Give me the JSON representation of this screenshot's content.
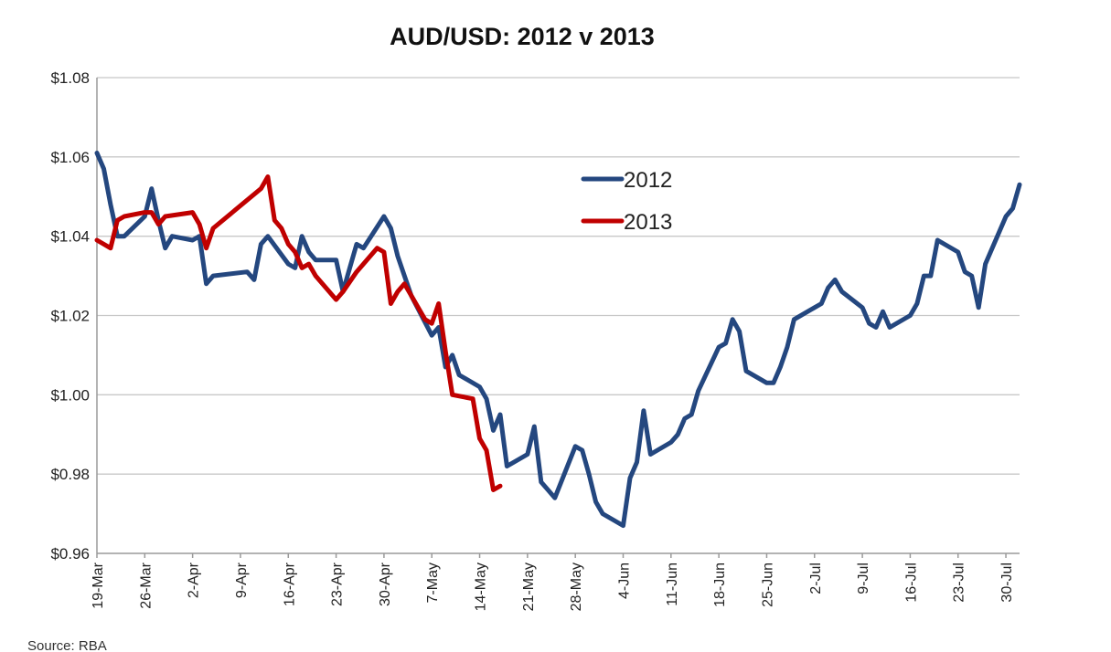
{
  "chart_data": {
    "type": "line",
    "title": "AUD/USD: 2012 v 2013",
    "xlabel": "",
    "ylabel": "",
    "ylim": [
      0.96,
      1.08
    ],
    "y_ticks": [
      {
        "value": 0.96,
        "label": "$0.96"
      },
      {
        "value": 0.98,
        "label": "$0.98"
      },
      {
        "value": 1.0,
        "label": "$1.00"
      },
      {
        "value": 1.02,
        "label": "$1.02"
      },
      {
        "value": 1.04,
        "label": "$1.04"
      },
      {
        "value": 1.06,
        "label": "$1.06"
      },
      {
        "value": 1.08,
        "label": "$1.08"
      }
    ],
    "x_start": "2012-03-19",
    "x_end": "2012-08-01",
    "x_ticks": [
      {
        "date": "2012-03-19",
        "label": "19-Mar"
      },
      {
        "date": "2012-03-26",
        "label": "26-Mar"
      },
      {
        "date": "2012-04-02",
        "label": "2-Apr"
      },
      {
        "date": "2012-04-09",
        "label": "9-Apr"
      },
      {
        "date": "2012-04-16",
        "label": "16-Apr"
      },
      {
        "date": "2012-04-23",
        "label": "23-Apr"
      },
      {
        "date": "2012-04-30",
        "label": "30-Apr"
      },
      {
        "date": "2012-05-07",
        "label": "7-May"
      },
      {
        "date": "2012-05-14",
        "label": "14-May"
      },
      {
        "date": "2012-05-21",
        "label": "21-May"
      },
      {
        "date": "2012-05-28",
        "label": "28-May"
      },
      {
        "date": "2012-06-04",
        "label": "4-Jun"
      },
      {
        "date": "2012-06-11",
        "label": "11-Jun"
      },
      {
        "date": "2012-06-18",
        "label": "18-Jun"
      },
      {
        "date": "2012-06-25",
        "label": "25-Jun"
      },
      {
        "date": "2012-07-02",
        "label": "2-Jul"
      },
      {
        "date": "2012-07-09",
        "label": "9-Jul"
      },
      {
        "date": "2012-07-16",
        "label": "16-Jul"
      },
      {
        "date": "2012-07-23",
        "label": "23-Jul"
      },
      {
        "date": "2012-07-30",
        "label": "30-Jul"
      }
    ],
    "grid": "horizontal",
    "legend_position": "upper-right-center",
    "series": [
      {
        "name": "2012",
        "color": "#24477f",
        "points": [
          [
            "2012-03-19",
            1.061
          ],
          [
            "2012-03-20",
            1.057
          ],
          [
            "2012-03-21",
            1.048
          ],
          [
            "2012-03-22",
            1.04
          ],
          [
            "2012-03-23",
            1.04
          ],
          [
            "2012-03-26",
            1.045
          ],
          [
            "2012-03-27",
            1.052
          ],
          [
            "2012-03-28",
            1.044
          ],
          [
            "2012-03-29",
            1.037
          ],
          [
            "2012-03-30",
            1.04
          ],
          [
            "2012-04-02",
            1.039
          ],
          [
            "2012-04-03",
            1.04
          ],
          [
            "2012-04-04",
            1.028
          ],
          [
            "2012-04-05",
            1.03
          ],
          [
            "2012-04-10",
            1.031
          ],
          [
            "2012-04-11",
            1.029
          ],
          [
            "2012-04-12",
            1.038
          ],
          [
            "2012-04-13",
            1.04
          ],
          [
            "2012-04-16",
            1.033
          ],
          [
            "2012-04-17",
            1.032
          ],
          [
            "2012-04-18",
            1.04
          ],
          [
            "2012-04-19",
            1.036
          ],
          [
            "2012-04-20",
            1.034
          ],
          [
            "2012-04-23",
            1.034
          ],
          [
            "2012-04-24",
            1.026
          ],
          [
            "2012-04-25",
            1.032
          ],
          [
            "2012-04-26",
            1.038
          ],
          [
            "2012-04-27",
            1.037
          ],
          [
            "2012-04-30",
            1.045
          ],
          [
            "2012-05-01",
            1.042
          ],
          [
            "2012-05-02",
            1.035
          ],
          [
            "2012-05-03",
            1.03
          ],
          [
            "2012-05-04",
            1.025
          ],
          [
            "2012-05-07",
            1.015
          ],
          [
            "2012-05-08",
            1.017
          ],
          [
            "2012-05-09",
            1.007
          ],
          [
            "2012-05-10",
            1.01
          ],
          [
            "2012-05-11",
            1.005
          ],
          [
            "2012-05-14",
            1.002
          ],
          [
            "2012-05-15",
            0.999
          ],
          [
            "2012-05-16",
            0.991
          ],
          [
            "2012-05-17",
            0.995
          ],
          [
            "2012-05-18",
            0.982
          ],
          [
            "2012-05-21",
            0.985
          ],
          [
            "2012-05-22",
            0.992
          ],
          [
            "2012-05-23",
            0.978
          ],
          [
            "2012-05-24",
            0.976
          ],
          [
            "2012-05-25",
            0.974
          ],
          [
            "2012-05-28",
            0.987
          ],
          [
            "2012-05-29",
            0.986
          ],
          [
            "2012-05-30",
            0.98
          ],
          [
            "2012-05-31",
            0.973
          ],
          [
            "2012-06-01",
            0.97
          ],
          [
            "2012-06-04",
            0.967
          ],
          [
            "2012-06-05",
            0.979
          ],
          [
            "2012-06-06",
            0.983
          ],
          [
            "2012-06-07",
            0.996
          ],
          [
            "2012-06-08",
            0.985
          ],
          [
            "2012-06-11",
            0.988
          ],
          [
            "2012-06-12",
            0.99
          ],
          [
            "2012-06-13",
            0.994
          ],
          [
            "2012-06-14",
            0.995
          ],
          [
            "2012-06-15",
            1.001
          ],
          [
            "2012-06-18",
            1.012
          ],
          [
            "2012-06-19",
            1.013
          ],
          [
            "2012-06-20",
            1.019
          ],
          [
            "2012-06-21",
            1.016
          ],
          [
            "2012-06-22",
            1.006
          ],
          [
            "2012-06-25",
            1.003
          ],
          [
            "2012-06-26",
            1.003
          ],
          [
            "2012-06-27",
            1.007
          ],
          [
            "2012-06-28",
            1.012
          ],
          [
            "2012-06-29",
            1.019
          ],
          [
            "2012-07-02",
            1.022
          ],
          [
            "2012-07-03",
            1.023
          ],
          [
            "2012-07-04",
            1.027
          ],
          [
            "2012-07-05",
            1.029
          ],
          [
            "2012-07-06",
            1.026
          ],
          [
            "2012-07-09",
            1.022
          ],
          [
            "2012-07-10",
            1.018
          ],
          [
            "2012-07-11",
            1.017
          ],
          [
            "2012-07-12",
            1.021
          ],
          [
            "2012-07-13",
            1.017
          ],
          [
            "2012-07-16",
            1.02
          ],
          [
            "2012-07-17",
            1.023
          ],
          [
            "2012-07-18",
            1.03
          ],
          [
            "2012-07-19",
            1.03
          ],
          [
            "2012-07-20",
            1.039
          ],
          [
            "2012-07-23",
            1.036
          ],
          [
            "2012-07-24",
            1.031
          ],
          [
            "2012-07-25",
            1.03
          ],
          [
            "2012-07-26",
            1.022
          ],
          [
            "2012-07-27",
            1.033
          ],
          [
            "2012-07-30",
            1.045
          ],
          [
            "2012-07-31",
            1.047
          ],
          [
            "2012-08-01",
            1.053
          ]
        ]
      },
      {
        "name": "2013",
        "color": "#c00000",
        "points": [
          [
            "2012-03-19",
            1.039
          ],
          [
            "2012-03-20",
            1.038
          ],
          [
            "2012-03-21",
            1.037
          ],
          [
            "2012-03-22",
            1.044
          ],
          [
            "2012-03-23",
            1.045
          ],
          [
            "2012-03-26",
            1.046
          ],
          [
            "2012-03-27",
            1.046
          ],
          [
            "2012-03-28",
            1.043
          ],
          [
            "2012-03-29",
            1.045
          ],
          [
            "2012-04-02",
            1.046
          ],
          [
            "2012-04-03",
            1.043
          ],
          [
            "2012-04-04",
            1.037
          ],
          [
            "2012-04-05",
            1.042
          ],
          [
            "2012-04-12",
            1.052
          ],
          [
            "2012-04-13",
            1.055
          ],
          [
            "2012-04-14",
            1.044
          ],
          [
            "2012-04-15",
            1.042
          ],
          [
            "2012-04-16",
            1.038
          ],
          [
            "2012-04-17",
            1.036
          ],
          [
            "2012-04-18",
            1.032
          ],
          [
            "2012-04-19",
            1.033
          ],
          [
            "2012-04-20",
            1.03
          ],
          [
            "2012-04-23",
            1.024
          ],
          [
            "2012-04-24",
            1.026
          ],
          [
            "2012-04-26",
            1.031
          ],
          [
            "2012-04-29",
            1.037
          ],
          [
            "2012-04-30",
            1.036
          ],
          [
            "2012-05-01",
            1.023
          ],
          [
            "2012-05-02",
            1.026
          ],
          [
            "2012-05-03",
            1.028
          ],
          [
            "2012-05-06",
            1.019
          ],
          [
            "2012-05-07",
            1.018
          ],
          [
            "2012-05-08",
            1.023
          ],
          [
            "2012-05-09",
            1.011
          ],
          [
            "2012-05-10",
            1.0
          ],
          [
            "2012-05-13",
            0.999
          ],
          [
            "2012-05-14",
            0.989
          ],
          [
            "2012-05-15",
            0.986
          ],
          [
            "2012-05-16",
            0.976
          ],
          [
            "2012-05-17",
            0.977
          ]
        ]
      }
    ],
    "source": "Source: RBA"
  }
}
